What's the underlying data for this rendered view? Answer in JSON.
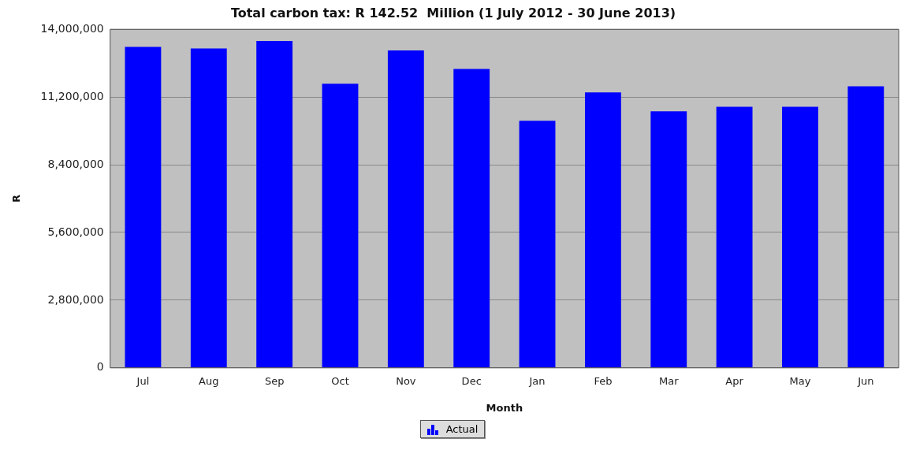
{
  "chart_data": {
    "type": "bar",
    "title": "Total carbon tax: R 142.52  Million (1 July 2012 - 30 June 2013)",
    "xlabel": "Month",
    "ylabel": "R",
    "categories": [
      "Jul",
      "Aug",
      "Sep",
      "Oct",
      "Nov",
      "Dec",
      "Jan",
      "Feb",
      "Mar",
      "Apr",
      "May",
      "Jun"
    ],
    "series": [
      {
        "name": "Actual",
        "color": "#0000ff",
        "values": [
          13270000,
          13210000,
          13520000,
          11750000,
          13130000,
          12360000,
          10220000,
          11390000,
          10610000,
          10800000,
          10800000,
          11640000
        ]
      }
    ],
    "ylim": [
      0,
      14000000
    ],
    "yticks": [
      0,
      {
        "value": 2800000,
        "label": "2,800,000"
      },
      {
        "value": 5600000,
        "label": "5,600,000"
      },
      {
        "value": 8400000,
        "label": "8,400,000"
      },
      {
        "value": 11200000,
        "label": "11,200,000"
      },
      {
        "value": 14000000,
        "label": "14,000,000"
      }
    ],
    "grid": "y",
    "legend": "bottom"
  }
}
